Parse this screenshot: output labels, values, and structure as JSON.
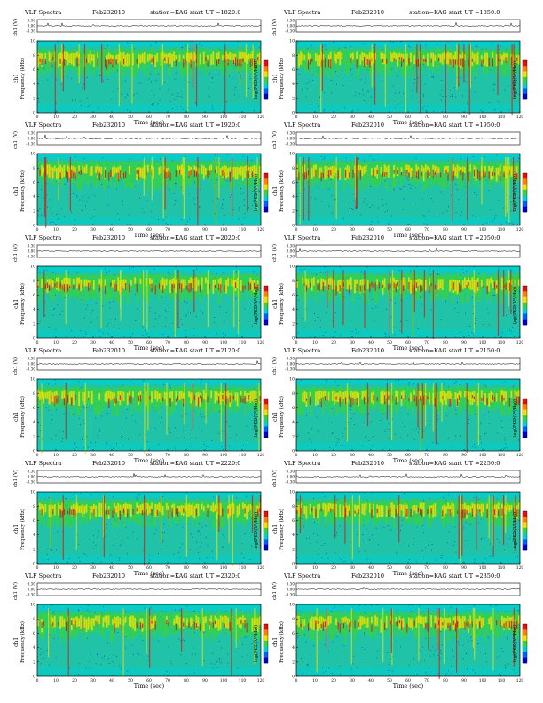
{
  "page": {
    "title": "VLF Spectra"
  },
  "panel_common": {
    "title": "VLF Spectra",
    "date": "Feb232010",
    "station": "station=KAG",
    "ch_axis_label": "ch1 (V)",
    "ch_ticks": [
      "0.30",
      "0.00",
      "-0.30"
    ],
    "y_axis_label_top": "ch1",
    "y_axis_label": "Frequency (kHz)",
    "x_axis_label": "Time (sec)",
    "x_ticks": [
      "0",
      "10",
      "20",
      "30",
      "40",
      "50",
      "60",
      "70",
      "80",
      "90",
      "100",
      "110",
      "120"
    ],
    "y_ticks": [
      "0",
      "2",
      "4",
      "6",
      "8",
      "10"
    ],
    "colorbar_label": "log(PSD(V²/Hz))",
    "colors": {
      "low": "#0000c8",
      "mid": "#00d0d0",
      "bg": "#21c3a8",
      "green": "#3ad23a",
      "yellow": "#f0e000",
      "red": "#e01010"
    }
  },
  "panels": [
    {
      "label": "start  UT =1820:0",
      "start_ut": "1820:0"
    },
    {
      "label": "start  UT =1850:0",
      "start_ut": "1850:0"
    },
    {
      "label": "start  UT =1920:0",
      "start_ut": "1920:0"
    },
    {
      "label": "start  UT =1950:0",
      "start_ut": "1950:0"
    },
    {
      "label": "start  UT =2020:0",
      "start_ut": "2020:0"
    },
    {
      "label": "start  UT =2050:0",
      "start_ut": "2050:0"
    },
    {
      "label": "start  UT =2120:0",
      "start_ut": "2120:0"
    },
    {
      "label": "start  UT =2150:0",
      "start_ut": "2150:0"
    },
    {
      "label": "start  UT =2220:0",
      "start_ut": "2220:0"
    },
    {
      "label": "start  UT =2250:0",
      "start_ut": "2250:0"
    },
    {
      "label": "start  UT =2320:0",
      "start_ut": "2320:0"
    },
    {
      "label": "start  UT =2350:0",
      "start_ut": "2350:0"
    }
  ],
  "chart_data": {
    "type": "heatmap",
    "title": "VLF Spectra",
    "xlabel": "Time (sec)",
    "ylabel": "Frequency (kHz)",
    "xlim": [
      0,
      120
    ],
    "ylim": [
      0,
      10
    ],
    "colorbar": "log(PSD(V²/Hz))",
    "panels": [
      "1820:0",
      "1850:0",
      "1920:0",
      "1950:0",
      "2020:0",
      "2050:0",
      "2120:0",
      "2150:0",
      "2220:0",
      "2250:0",
      "2320:0",
      "2350:0"
    ]
  }
}
